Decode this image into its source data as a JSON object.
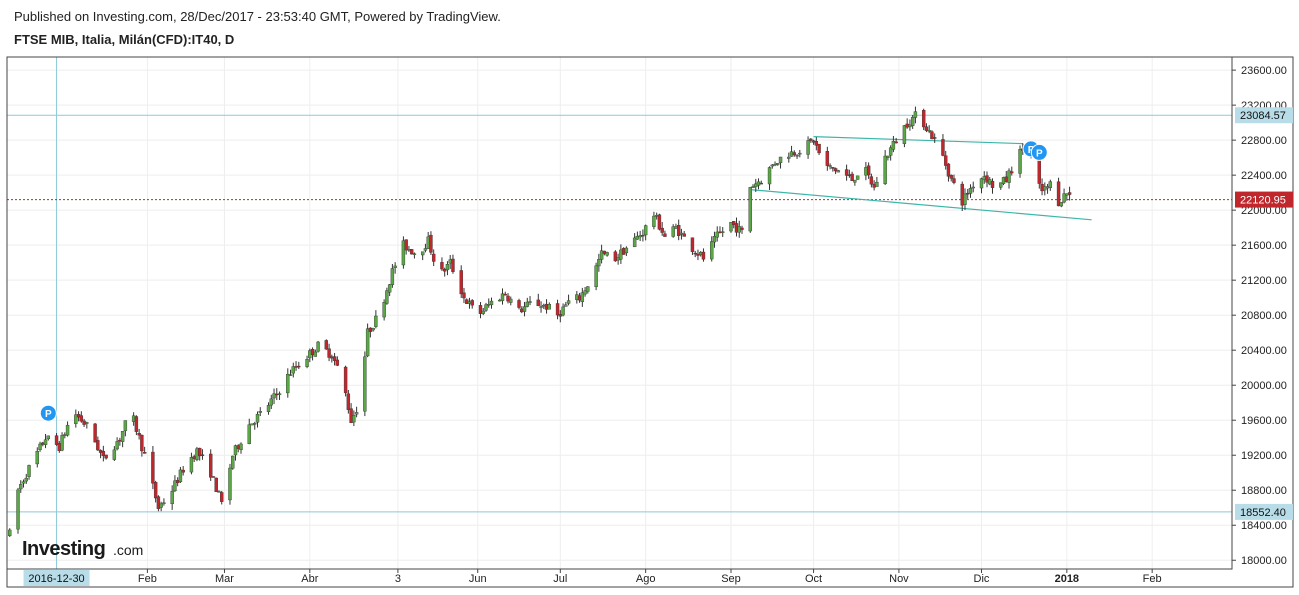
{
  "header": {
    "published": "Published on Investing.com, 28/Dec/2017 - 23:53:40 GMT, Powered by TradingView.",
    "symbol": "FTSE MIB, Italia, Milán(CFD):IT40, D"
  },
  "logo": {
    "main": "Investing",
    "suffix": ".com"
  },
  "colors": {
    "up": "#5aa745",
    "down": "#c0272d",
    "grid": "#eeeeee",
    "hline": "#8cc9d9",
    "price_line": "#c0272d",
    "trend": "#3cb6a8",
    "marker": "#2196f3",
    "label_bg": "#b9dde8"
  },
  "chart_data": {
    "type": "candlestick",
    "title": "FTSE MIB, Italia, Milán(CFD):IT40, D",
    "ylim": [
      17900,
      23750
    ],
    "y_ticks": [
      18000,
      18400,
      18800,
      19200,
      19600,
      20000,
      20400,
      20800,
      21200,
      21600,
      22000,
      22400,
      22800,
      23200,
      23600
    ],
    "y_tick_labels": [
      "18000.00",
      "18400.00",
      "18800.00",
      "19200.00",
      "19600.00",
      "20000.00",
      "20400.00",
      "20800.00",
      "21200.00",
      "21600.00",
      "22000.00",
      "22400.00",
      "22800.00",
      "23200.00",
      "23600.00"
    ],
    "x_tick_labels": [
      {
        "label": "Feb",
        "day": 33
      },
      {
        "label": "Mar",
        "day": 61
      },
      {
        "label": "Abr",
        "day": 92
      },
      {
        "label": "3",
        "day": 124
      },
      {
        "label": "Jun",
        "day": 153
      },
      {
        "label": "Jul",
        "day": 183
      },
      {
        "label": "Ago",
        "day": 214
      },
      {
        "label": "Sep",
        "day": 245
      },
      {
        "label": "Oct",
        "day": 275
      },
      {
        "label": "Nov",
        "day": 306
      },
      {
        "label": "Dic",
        "day": 336
      },
      {
        "label": "2018",
        "day": 367
      },
      {
        "label": "Feb",
        "day": 398
      }
    ],
    "x_range_days": [
      -18,
      427
    ],
    "crosshair": {
      "day": 0,
      "label": "2016-12-30"
    },
    "horizontal_lines": [
      {
        "value": 23084.57,
        "label": "23084.57"
      },
      {
        "value": 18552.4,
        "label": "18552.40"
      }
    ],
    "last_price": {
      "value": 22120.95,
      "label": "22120.95"
    },
    "trendlines": [
      {
        "from": {
          "day": 275,
          "value": 22840
        },
        "to": {
          "day": 351,
          "value": 22760
        }
      },
      {
        "from": {
          "day": 252,
          "value": 22235
        },
        "to": {
          "day": 376,
          "value": 21890
        }
      }
    ],
    "markers": [
      {
        "day": -3,
        "value": 19680,
        "label": "P"
      },
      {
        "day": 354,
        "value": 22700,
        "label": "P"
      },
      {
        "day": 357,
        "value": 22660,
        "label": "P"
      }
    ],
    "waypoints": [
      [
        -17,
        18300
      ],
      [
        -14,
        18800
      ],
      [
        -10,
        19050
      ],
      [
        -4,
        19400
      ],
      [
        1,
        19300
      ],
      [
        6,
        19700
      ],
      [
        12,
        19500
      ],
      [
        17,
        19150
      ],
      [
        23,
        19400
      ],
      [
        27,
        19700
      ],
      [
        32,
        19200
      ],
      [
        37,
        18600
      ],
      [
        41,
        18750
      ],
      [
        47,
        19100
      ],
      [
        51,
        19250
      ],
      [
        56,
        19000
      ],
      [
        60,
        18650
      ],
      [
        64,
        19200
      ],
      [
        70,
        19550
      ],
      [
        75,
        19700
      ],
      [
        80,
        19900
      ],
      [
        85,
        20150
      ],
      [
        90,
        20300
      ],
      [
        95,
        20450
      ],
      [
        100,
        20350
      ],
      [
        104,
        20050
      ],
      [
        107,
        19600
      ],
      [
        110,
        19800
      ],
      [
        113,
        20600
      ],
      [
        117,
        20800
      ],
      [
        122,
        21300
      ],
      [
        126,
        21600
      ],
      [
        131,
        21500
      ],
      [
        135,
        21650
      ],
      [
        139,
        21250
      ],
      [
        143,
        21400
      ],
      [
        148,
        21000
      ],
      [
        153,
        20800
      ],
      [
        158,
        20950
      ],
      [
        163,
        21050
      ],
      [
        168,
        20850
      ],
      [
        173,
        20950
      ],
      [
        178,
        20900
      ],
      [
        182,
        20800
      ],
      [
        186,
        20950
      ],
      [
        190,
        21000
      ],
      [
        194,
        21200
      ],
      [
        198,
        21500
      ],
      [
        203,
        21450
      ],
      [
        208,
        21600
      ],
      [
        213,
        21750
      ],
      [
        217,
        21950
      ],
      [
        221,
        21700
      ],
      [
        225,
        21800
      ],
      [
        230,
        21600
      ],
      [
        235,
        21450
      ],
      [
        240,
        21700
      ],
      [
        245,
        21850
      ],
      [
        249,
        21750
      ],
      [
        251,
        22250
      ],
      [
        256,
        22350
      ],
      [
        261,
        22550
      ],
      [
        266,
        22650
      ],
      [
        271,
        22700
      ],
      [
        275,
        22800
      ],
      [
        279,
        22500
      ],
      [
        284,
        22450
      ],
      [
        289,
        22350
      ],
      [
        293,
        22500
      ],
      [
        297,
        22250
      ],
      [
        301,
        22600
      ],
      [
        305,
        22800
      ],
      [
        309,
        23000
      ],
      [
        313,
        23100
      ],
      [
        317,
        22900
      ],
      [
        321,
        22700
      ],
      [
        325,
        22350
      ],
      [
        329,
        22100
      ],
      [
        333,
        22300
      ],
      [
        337,
        22400
      ],
      [
        341,
        22250
      ],
      [
        345,
        22350
      ],
      [
        349,
        22600
      ],
      [
        352,
        22750
      ],
      [
        355,
        22500
      ],
      [
        358,
        22200
      ],
      [
        361,
        22300
      ],
      [
        364,
        22100
      ],
      [
        367,
        22200
      ],
      [
        370,
        22121
      ]
    ]
  }
}
